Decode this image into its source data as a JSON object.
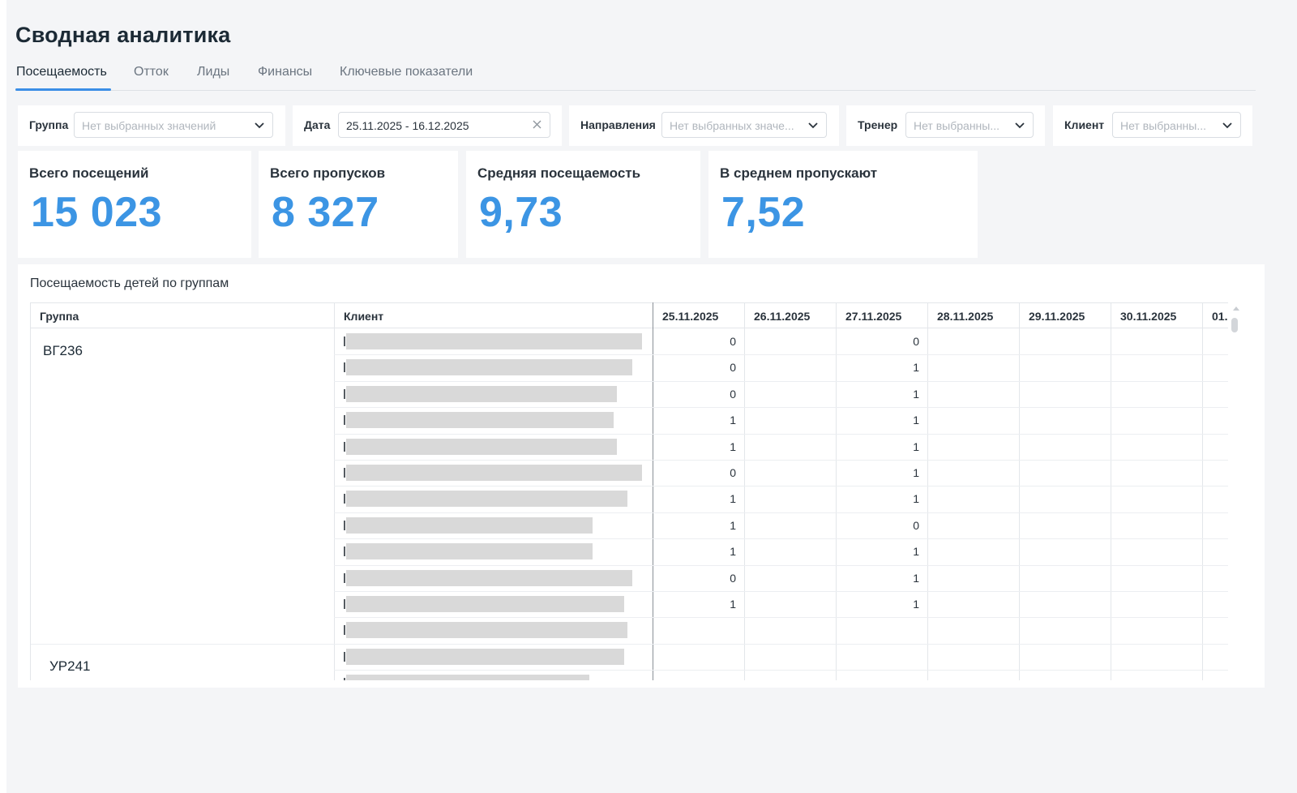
{
  "page": {
    "title": "Сводная аналитика"
  },
  "tabs": [
    {
      "label": "Посещаемость",
      "active": true
    },
    {
      "label": "Отток"
    },
    {
      "label": "Лиды"
    },
    {
      "label": "Финансы"
    },
    {
      "label": "Ключевые показатели"
    }
  ],
  "filters": {
    "group": {
      "label": "Группа",
      "placeholder": "Нет выбранных значений"
    },
    "date": {
      "label": "Дата",
      "value": "25.11.2025 - 16.12.2025"
    },
    "directions": {
      "label": "Направления",
      "placeholder": "Нет выбранных значе..."
    },
    "trainer": {
      "label": "Тренер",
      "placeholder": "Нет выбранны..."
    },
    "client": {
      "label": "Клиент",
      "placeholder": "Нет выбранны..."
    }
  },
  "kpis": [
    {
      "label": "Всего посещений",
      "value": "15 023"
    },
    {
      "label": "Всего пропусков",
      "value": "8 327"
    },
    {
      "label": "Средняя посещаемость",
      "value": "9,73"
    },
    {
      "label": "В среднем пропускают",
      "value": "7,52"
    }
  ],
  "table": {
    "title": "Посещаемость детей по группам",
    "columns": {
      "group": "Группа",
      "client": "Клиент",
      "dates": [
        "25.11.2025",
        "26.11.2025",
        "27.11.2025",
        "28.11.2025",
        "29.11.2025",
        "30.11.2025",
        "01."
      ]
    },
    "groups": [
      {
        "name": "ВГ236",
        "rows": [
          {
            "d1": "0",
            "d3": "0"
          },
          {
            "d1": "0",
            "d3": "1"
          },
          {
            "d1": "0",
            "d3": "1"
          },
          {
            "d1": "1",
            "d3": "1"
          },
          {
            "d1": "1",
            "d3": "1"
          },
          {
            "d1": "0",
            "d3": "1"
          },
          {
            "d1": "1",
            "d3": "1"
          },
          {
            "d1": "1",
            "d3": "0"
          },
          {
            "d1": "1",
            "d3": "1"
          },
          {
            "d1": "0",
            "d3": "1"
          },
          {
            "d1": "1",
            "d3": "1"
          },
          {
            "d1": "",
            "d3": ""
          }
        ]
      },
      {
        "name": "УР241",
        "rows": [
          {
            "d1": "",
            "d3": ""
          },
          {
            "d1": "",
            "d3": ""
          }
        ]
      }
    ]
  }
}
